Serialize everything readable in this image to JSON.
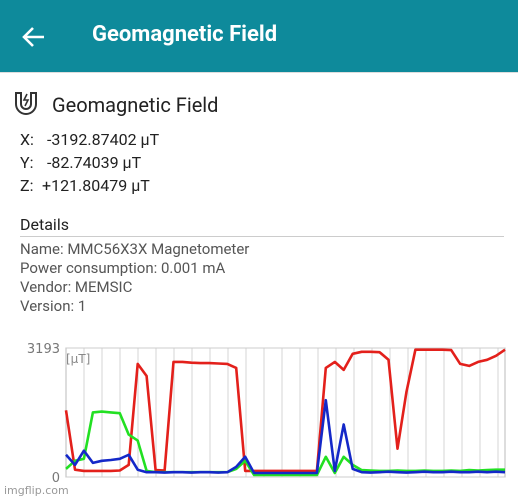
{
  "header": {
    "title": "Geomagnetic Field"
  },
  "card": {
    "title": "Geomagnetic Field"
  },
  "readings": [
    {
      "axis": "X:",
      "value": "-3192.87402 μT"
    },
    {
      "axis": "Y:",
      "value": "-82.74039 μT"
    },
    {
      "axis": "Z:",
      "value": "+121.80479 μT"
    }
  ],
  "details": {
    "title": "Details",
    "lines": [
      "Name: MMC56X3X Magnetometer",
      "Power consumption: 0.001 mA",
      "Vendor: MEMSIC",
      "Version: 1"
    ]
  },
  "chart_data": {
    "type": "line",
    "unit_label": "[μT]",
    "ylim": [
      0,
      3193
    ],
    "yticks": [
      0,
      3193
    ],
    "grid": true,
    "series": [
      {
        "color": "#e3201b",
        "values": [
          1650,
          180,
          150,
          150,
          150,
          150,
          160,
          300,
          2800,
          2500,
          170,
          160,
          2850,
          2850,
          2830,
          2820,
          2820,
          2810,
          2800,
          2700,
          150,
          150,
          150,
          150,
          150,
          150,
          150,
          150,
          150,
          2700,
          2850,
          2650,
          3050,
          3100,
          3100,
          3090,
          2900,
          700,
          2100,
          3150,
          3150,
          3150,
          3150,
          3140,
          2800,
          2750,
          2850,
          2900,
          3000,
          3150
        ]
      },
      {
        "color": "#22e022",
        "values": [
          200,
          400,
          450,
          1600,
          1620,
          1600,
          1580,
          1050,
          900,
          150,
          120,
          120,
          120,
          120,
          120,
          120,
          120,
          120,
          120,
          200,
          400,
          50,
          50,
          50,
          50,
          50,
          50,
          50,
          50,
          500,
          100,
          500,
          300,
          170,
          160,
          150,
          150,
          160,
          150,
          150,
          160,
          150,
          150,
          160,
          150,
          170,
          160,
          170,
          180,
          180
        ]
      },
      {
        "color": "#1428c8",
        "values": [
          550,
          300,
          650,
          350,
          400,
          420,
          450,
          550,
          180,
          120,
          120,
          110,
          120,
          120,
          110,
          120,
          120,
          110,
          120,
          250,
          500,
          100,
          100,
          100,
          100,
          100,
          100,
          100,
          100,
          1900,
          150,
          1300,
          200,
          120,
          110,
          120,
          130,
          120,
          110,
          120,
          130,
          120,
          120,
          130,
          120,
          120,
          130,
          120,
          130,
          120
        ]
      }
    ]
  },
  "watermark": "imgflip.com"
}
